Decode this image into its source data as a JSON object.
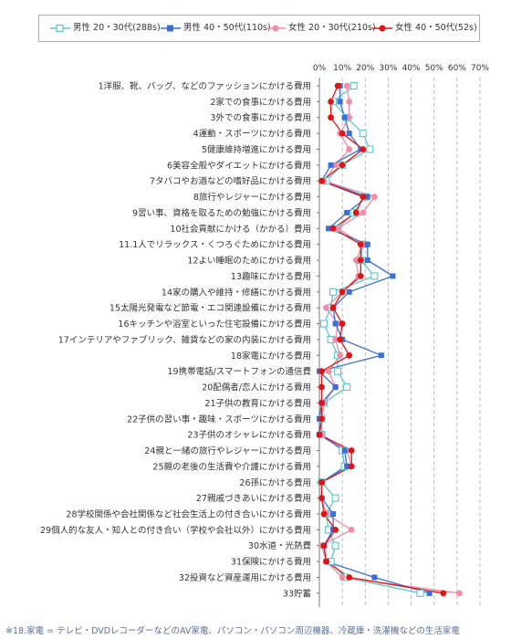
{
  "colors": {
    "male_20_30": "#5bc8c8",
    "male_40_50": "#3a6ed8",
    "female_20_30": "#f08ca8",
    "female_40_50": "#e01414"
  },
  "chart_data": {
    "type": "line",
    "orientation": "horizontal",
    "title": "",
    "xlabel": "",
    "ylabel": "",
    "xlim": [
      0,
      70
    ],
    "x_ticks": [
      "0%",
      "10%",
      "20%",
      "30%",
      "40%",
      "50%",
      "60%",
      "70%"
    ],
    "grid": true,
    "legend_position": "top",
    "categories": [
      "1洋服、靴、バッグ、などのファッションにかける費用",
      "2家での食事にかける費用",
      "3外での食事にかける費用",
      "4運動・スポーツにかける費用",
      "5健康維持増進にかける費用",
      "6美容全般やダイエットにかける費用",
      "7タバコやお酒などの嗜好品にかける費用",
      "8旅行やレジャーにかける費用",
      "9習い事、資格を取るための勉強にかける費用",
      "10社会貢献にかける（かかる）費用",
      "11.1人でリラックス・くつろぐためにかける費用",
      "12よい睡眠のためにかける費用",
      "13趣味にかける費用",
      "14家の購入や維持・修繕にかける費用",
      "15太陽光発電など節電・エコ関連設備にかける費用",
      "16キッチンや浴室といった住宅設備にかける費用",
      "17インテリアやファブリック、雑貨などの家の内装にかける費用",
      "18家電にかける費用",
      "19携帯電話/スマートフォンの通信費",
      "20配偶者/恋人にかける費用",
      "21子供の教育にかける費用",
      "22子供の習い事・趣味・スポーツにかける費用",
      "23子供のオシャレにかける費用",
      "24親と一緒の旅行やレジャーにかける費用",
      "25親の老後の生活費や介護にかける費用",
      "26孫にかける費用",
      "27親戚づきあいにかける費用",
      "28学校関係や会社関係など社会生活上の付き合いにかける費用",
      "29個人的な友人・知人との付き合い（学校や会社以外）にかける費用",
      "30水道・光熱費",
      "31保険にかける費用",
      "32投資など資産運用にかける費用",
      "33貯蓄"
    ],
    "series": [
      {
        "name": "男性 20・30代(288s)",
        "key": "male_20_30",
        "marker": "open-square",
        "values": [
          15,
          6,
          12,
          19,
          22,
          10,
          3,
          20,
          15,
          8,
          19,
          18,
          24,
          6,
          5,
          2,
          5,
          8,
          8,
          12,
          2,
          1,
          1,
          10,
          11,
          1,
          7,
          3,
          4,
          7,
          5,
          11,
          44
        ]
      },
      {
        "name": "男性 40・50代(110s)",
        "key": "male_40_50",
        "marker": "filled-square",
        "values": [
          9,
          9,
          11,
          13,
          18,
          5,
          1,
          21,
          12,
          4,
          21,
          21,
          32,
          13,
          6,
          7,
          10,
          27,
          0,
          7,
          1,
          0,
          0,
          11,
          12,
          1,
          1,
          6,
          6,
          2,
          3,
          24,
          48
        ]
      },
      {
        "name": "女性 20・30代(210s)",
        "key": "female_20_30",
        "marker": "circle-pink",
        "values": [
          12,
          13,
          13,
          9,
          13,
          7,
          2,
          24,
          19,
          8,
          19,
          16,
          17,
          10,
          3,
          8,
          7,
          9,
          4,
          7,
          2,
          1,
          1,
          12,
          14,
          1,
          1,
          3,
          14,
          1,
          3,
          10,
          61
        ]
      },
      {
        "name": "女性 40・50代(52s)",
        "key": "female_40_50",
        "marker": "circle-red",
        "values": [
          8,
          5,
          5,
          10,
          19,
          10,
          1,
          19,
          16,
          6,
          18,
          18,
          18,
          10,
          6,
          10,
          9,
          13,
          1,
          1,
          1,
          1,
          0,
          14,
          14,
          1,
          1,
          2,
          7,
          2,
          3,
          13,
          54
        ]
      }
    ]
  },
  "footnote": "※18.家電 = テレビ・DVDレコーダーなどのAV家電、パソコン・パソコン周辺機器、冷蔵庫・洗濯機などの生活家電"
}
